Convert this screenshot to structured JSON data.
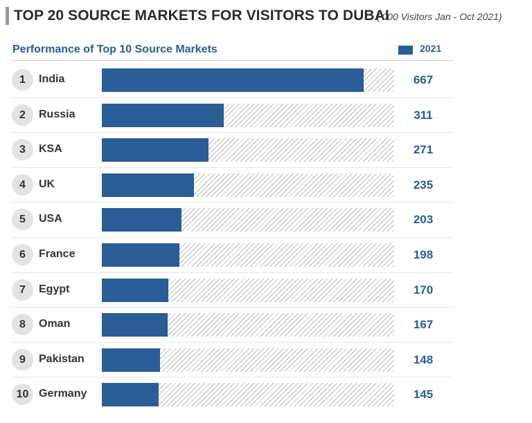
{
  "header": {
    "title": "TOP 20 SOURCE MARKETS FOR VISITORS TO DUBAI",
    "subtitle": "('000 Visitors Jan - Oct 2021)",
    "section_title": "Performance of Top 10 Source Markets",
    "legend_label": "2021"
  },
  "colors": {
    "bar": "#2a5d96",
    "value_text": "#2a5d96",
    "rank_circle": "#e3e3e3",
    "hatch": "#b9b9b9"
  },
  "chart_data": {
    "type": "bar",
    "orientation": "horizontal",
    "title": "Performance of Top 10 Source Markets",
    "xlabel": "",
    "ylabel": "",
    "xlim": [
      0,
      745
    ],
    "grid": false,
    "legend_position": "top-right",
    "ranks": [
      "1",
      "2",
      "3",
      "4",
      "5",
      "6",
      "7",
      "8",
      "9",
      "10"
    ],
    "categories": [
      "India",
      "Russia",
      "KSA",
      "UK",
      "USA",
      "France",
      "Egypt",
      "Oman",
      "Pakistan",
      "Germany"
    ],
    "series": [
      {
        "name": "2021",
        "values": [
          667,
          311,
          271,
          235,
          203,
          198,
          170,
          167,
          148,
          145
        ]
      }
    ]
  }
}
